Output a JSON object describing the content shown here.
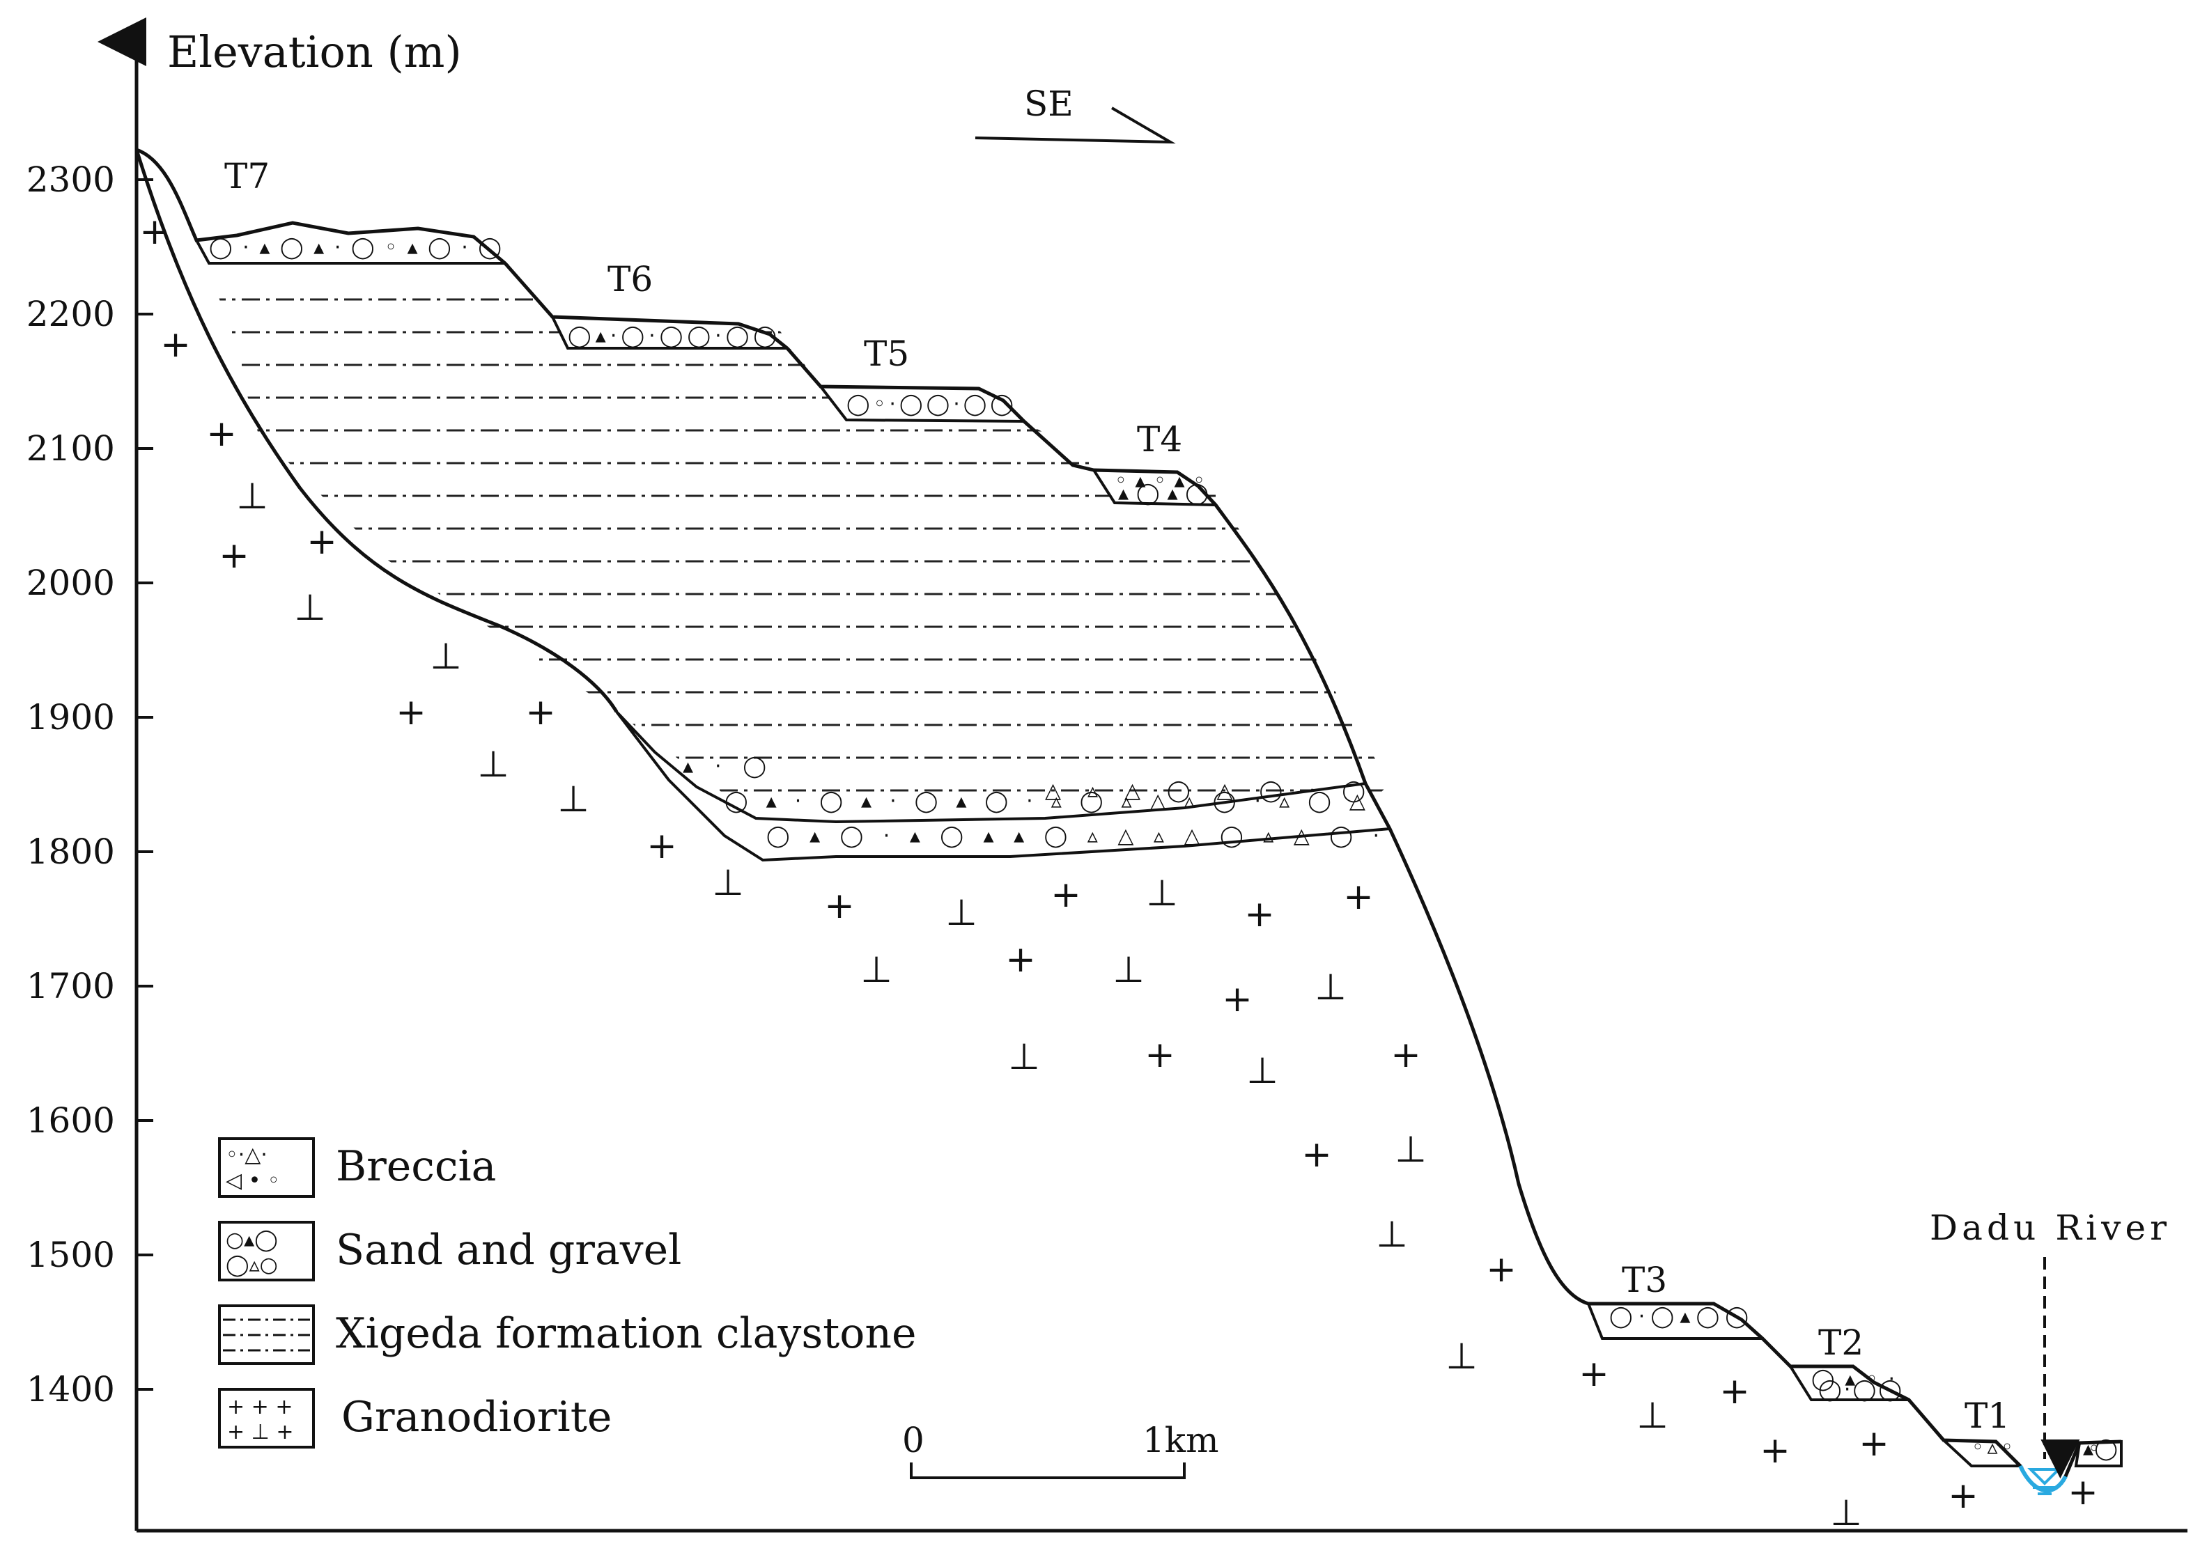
{
  "axis": {
    "y_label": "Elevation (m)",
    "y_ticks": [
      "2300",
      "2200",
      "2100",
      "2000",
      "1900",
      "1800",
      "1700",
      "1600",
      "1500",
      "1400"
    ],
    "y_tick_values": [
      2300,
      2200,
      2100,
      2000,
      1900,
      1800,
      1700,
      1600,
      1500,
      1400
    ]
  },
  "direction": {
    "label": "SE"
  },
  "terraces": [
    "T7",
    "T6",
    "T5",
    "T4",
    "T3",
    "T2",
    "T1"
  ],
  "river": {
    "label": "Dadu River",
    "color": "#29a9e0"
  },
  "legend": [
    {
      "id": "breccia",
      "label": "Breccia"
    },
    {
      "id": "sand-gravel",
      "label": "Sand and gravel"
    },
    {
      "id": "claystone",
      "label": "Xigeda formation claystone"
    },
    {
      "id": "granodiorite",
      "label": "Granodiorite"
    }
  ],
  "scale_bar": {
    "start": "0",
    "end": "1km"
  }
}
